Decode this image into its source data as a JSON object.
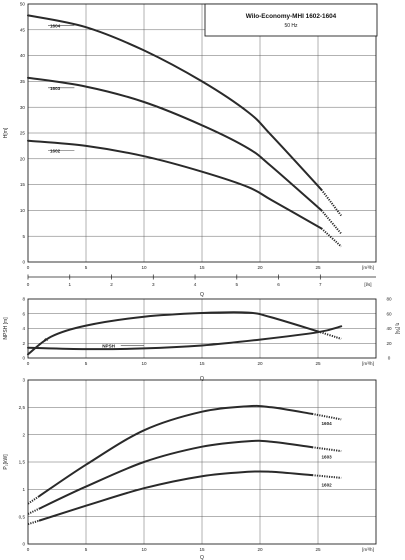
{
  "title_box": {
    "title": "Wilo-Economy-MHI 1602-1604",
    "subtitle": "50 Hz"
  },
  "chart_data": [
    {
      "type": "line",
      "name": "head",
      "ylabel": "H[m]",
      "xlabel": "Q",
      "x_unit": "[m³/h]",
      "x2_unit": "[l/s]",
      "xlim": [
        0,
        30
      ],
      "ylim": [
        0,
        50
      ],
      "xticks": [
        0,
        5,
        10,
        15,
        20,
        25
      ],
      "yticks": [
        0,
        5,
        10,
        15,
        20,
        25,
        30,
        35,
        40,
        45,
        50
      ],
      "x2ticks": [
        0,
        1,
        2,
        3,
        4,
        5,
        6,
        7
      ],
      "grid": true,
      "series": [
        {
          "name": "1604",
          "x": [
            0,
            5,
            10,
            15,
            19,
            21,
            25.3
          ],
          "y": [
            47.8,
            45.5,
            41,
            35,
            29,
            24.5,
            14
          ],
          "ext_x": [
            25.3,
            27
          ],
          "ext_y": [
            14,
            9
          ]
        },
        {
          "name": "1603",
          "x": [
            0,
            5,
            10,
            15,
            19,
            21,
            25.3
          ],
          "y": [
            35.7,
            34,
            31,
            26.5,
            22,
            18.5,
            10
          ],
          "ext_x": [
            25.3,
            27
          ],
          "ext_y": [
            10,
            5.5
          ]
        },
        {
          "name": "1602",
          "x": [
            0,
            5,
            10,
            15,
            19,
            21,
            25.3
          ],
          "y": [
            23.5,
            22.5,
            20.5,
            17.5,
            14.5,
            12,
            6.5
          ],
          "ext_x": [
            25.3,
            27
          ],
          "ext_y": [
            6.5,
            3
          ]
        }
      ]
    },
    {
      "type": "line",
      "name": "npsh-eta",
      "ylabel": "NPSH [m]",
      "y2label": "η [%]",
      "xlabel": "Q",
      "x_unit": "[m³/h]",
      "xlim": [
        0,
        30
      ],
      "ylim": [
        0,
        8
      ],
      "y2lim": [
        0,
        80
      ],
      "xticks": [
        0,
        5,
        10,
        15,
        20,
        25
      ],
      "yticks": [
        0,
        2,
        4,
        6,
        8
      ],
      "y2ticks": [
        0,
        20,
        40,
        60,
        80
      ],
      "grid": true,
      "series": [
        {
          "name": "η",
          "axis": "right",
          "x": [
            0,
            2,
            5,
            10,
            15,
            19,
            21,
            25
          ],
          "y": [
            5,
            29,
            44,
            56,
            61,
            61.5,
            55,
            36
          ],
          "ext_x": [
            25,
            27
          ],
          "ext_y": [
            36,
            26
          ]
        },
        {
          "name": "NPSH",
          "axis": "left",
          "x": [
            0,
            5,
            10,
            15,
            20,
            25,
            27
          ],
          "y": [
            1.4,
            1.2,
            1.3,
            1.7,
            2.5,
            3.5,
            4.3
          ]
        }
      ]
    },
    {
      "type": "line",
      "name": "power",
      "ylabel": "P₂[kW]",
      "xlabel": "Q",
      "x_unit": "[m³/h]",
      "xlim": [
        0,
        30
      ],
      "ylim": [
        0,
        3
      ],
      "xticks": [
        0,
        5,
        10,
        15,
        20,
        25
      ],
      "yticks": [
        0,
        0.5,
        1,
        1.5,
        2,
        2.5,
        3
      ],
      "ytick_labels": [
        "0",
        "0,5",
        "1",
        "1,5",
        "2",
        "2,5",
        "3"
      ],
      "grid": true,
      "series": [
        {
          "name": "1604",
          "x": [
            1,
            5,
            10,
            15,
            19,
            21,
            24.5
          ],
          "y": [
            0.88,
            1.45,
            2.08,
            2.42,
            2.52,
            2.5,
            2.38
          ],
          "ext_x": [
            24.5,
            27
          ],
          "ext_y": [
            2.38,
            2.28
          ]
        },
        {
          "name": "1603",
          "x": [
            1,
            5,
            10,
            15,
            19,
            21,
            24.5
          ],
          "y": [
            0.65,
            1.05,
            1.5,
            1.78,
            1.88,
            1.87,
            1.77
          ],
          "ext_x": [
            24.5,
            27
          ],
          "ext_y": [
            1.77,
            1.7
          ]
        },
        {
          "name": "1602",
          "x": [
            1,
            5,
            10,
            15,
            19,
            21,
            24.5
          ],
          "y": [
            0.43,
            0.7,
            1.02,
            1.24,
            1.32,
            1.32,
            1.26
          ],
          "ext_x": [
            24.5,
            27
          ],
          "ext_y": [
            1.26,
            1.21
          ]
        }
      ]
    }
  ]
}
